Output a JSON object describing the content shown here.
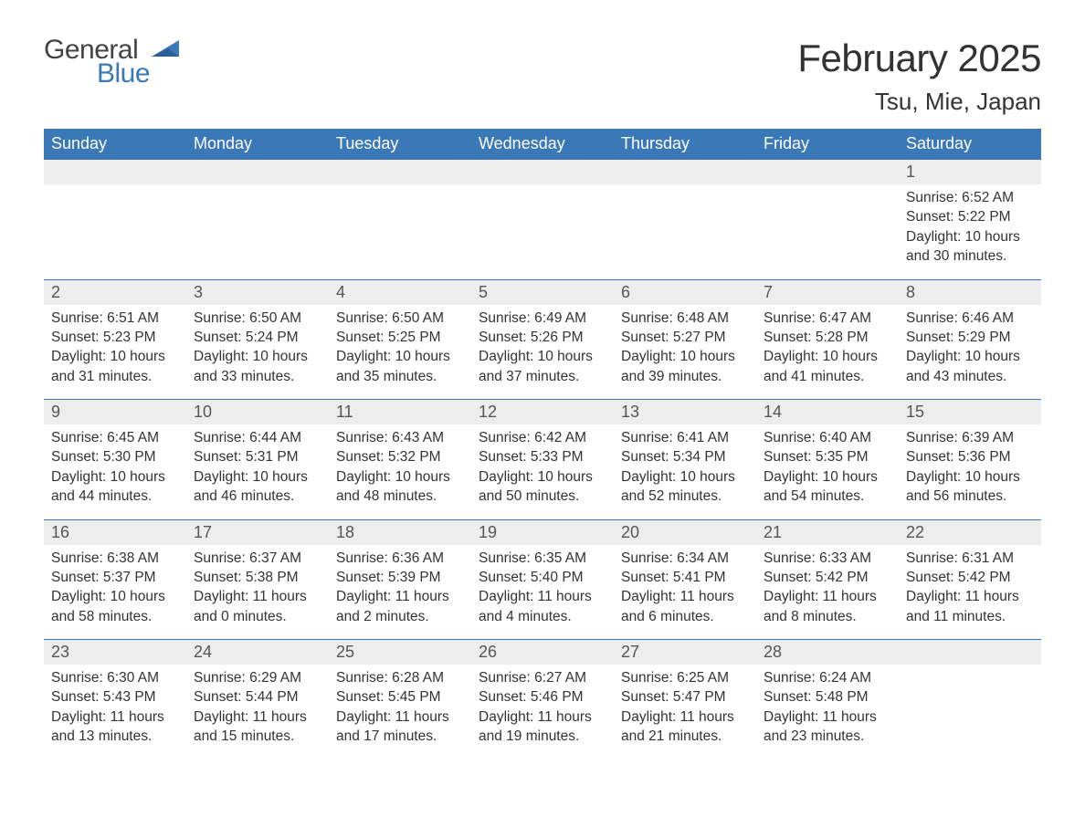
{
  "colors": {
    "header_bg": "#3a78b8",
    "header_text": "#ffffff",
    "daynum_bg": "#ededed",
    "row_border": "#3a78b8",
    "body_text": "#333333",
    "logo_gray": "#444444",
    "logo_blue": "#3a78b8",
    "page_bg": "#ffffff"
  },
  "typography": {
    "title_fontsize": 42,
    "location_fontsize": 26,
    "weekday_fontsize": 18,
    "daynum_fontsize": 18,
    "body_fontsize": 15.5
  },
  "logo": {
    "line1": "General",
    "line2": "Blue"
  },
  "title": "February 2025",
  "location": "Tsu, Mie, Japan",
  "weekdays": [
    "Sunday",
    "Monday",
    "Tuesday",
    "Wednesday",
    "Thursday",
    "Friday",
    "Saturday"
  ],
  "weeks": [
    [
      {
        "day": "",
        "sunrise": "",
        "sunset": "",
        "daylight": ""
      },
      {
        "day": "",
        "sunrise": "",
        "sunset": "",
        "daylight": ""
      },
      {
        "day": "",
        "sunrise": "",
        "sunset": "",
        "daylight": ""
      },
      {
        "day": "",
        "sunrise": "",
        "sunset": "",
        "daylight": ""
      },
      {
        "day": "",
        "sunrise": "",
        "sunset": "",
        "daylight": ""
      },
      {
        "day": "",
        "sunrise": "",
        "sunset": "",
        "daylight": ""
      },
      {
        "day": "1",
        "sunrise": "Sunrise: 6:52 AM",
        "sunset": "Sunset: 5:22 PM",
        "daylight": "Daylight: 10 hours and 30 minutes."
      }
    ],
    [
      {
        "day": "2",
        "sunrise": "Sunrise: 6:51 AM",
        "sunset": "Sunset: 5:23 PM",
        "daylight": "Daylight: 10 hours and 31 minutes."
      },
      {
        "day": "3",
        "sunrise": "Sunrise: 6:50 AM",
        "sunset": "Sunset: 5:24 PM",
        "daylight": "Daylight: 10 hours and 33 minutes."
      },
      {
        "day": "4",
        "sunrise": "Sunrise: 6:50 AM",
        "sunset": "Sunset: 5:25 PM",
        "daylight": "Daylight: 10 hours and 35 minutes."
      },
      {
        "day": "5",
        "sunrise": "Sunrise: 6:49 AM",
        "sunset": "Sunset: 5:26 PM",
        "daylight": "Daylight: 10 hours and 37 minutes."
      },
      {
        "day": "6",
        "sunrise": "Sunrise: 6:48 AM",
        "sunset": "Sunset: 5:27 PM",
        "daylight": "Daylight: 10 hours and 39 minutes."
      },
      {
        "day": "7",
        "sunrise": "Sunrise: 6:47 AM",
        "sunset": "Sunset: 5:28 PM",
        "daylight": "Daylight: 10 hours and 41 minutes."
      },
      {
        "day": "8",
        "sunrise": "Sunrise: 6:46 AM",
        "sunset": "Sunset: 5:29 PM",
        "daylight": "Daylight: 10 hours and 43 minutes."
      }
    ],
    [
      {
        "day": "9",
        "sunrise": "Sunrise: 6:45 AM",
        "sunset": "Sunset: 5:30 PM",
        "daylight": "Daylight: 10 hours and 44 minutes."
      },
      {
        "day": "10",
        "sunrise": "Sunrise: 6:44 AM",
        "sunset": "Sunset: 5:31 PM",
        "daylight": "Daylight: 10 hours and 46 minutes."
      },
      {
        "day": "11",
        "sunrise": "Sunrise: 6:43 AM",
        "sunset": "Sunset: 5:32 PM",
        "daylight": "Daylight: 10 hours and 48 minutes."
      },
      {
        "day": "12",
        "sunrise": "Sunrise: 6:42 AM",
        "sunset": "Sunset: 5:33 PM",
        "daylight": "Daylight: 10 hours and 50 minutes."
      },
      {
        "day": "13",
        "sunrise": "Sunrise: 6:41 AM",
        "sunset": "Sunset: 5:34 PM",
        "daylight": "Daylight: 10 hours and 52 minutes."
      },
      {
        "day": "14",
        "sunrise": "Sunrise: 6:40 AM",
        "sunset": "Sunset: 5:35 PM",
        "daylight": "Daylight: 10 hours and 54 minutes."
      },
      {
        "day": "15",
        "sunrise": "Sunrise: 6:39 AM",
        "sunset": "Sunset: 5:36 PM",
        "daylight": "Daylight: 10 hours and 56 minutes."
      }
    ],
    [
      {
        "day": "16",
        "sunrise": "Sunrise: 6:38 AM",
        "sunset": "Sunset: 5:37 PM",
        "daylight": "Daylight: 10 hours and 58 minutes."
      },
      {
        "day": "17",
        "sunrise": "Sunrise: 6:37 AM",
        "sunset": "Sunset: 5:38 PM",
        "daylight": "Daylight: 11 hours and 0 minutes."
      },
      {
        "day": "18",
        "sunrise": "Sunrise: 6:36 AM",
        "sunset": "Sunset: 5:39 PM",
        "daylight": "Daylight: 11 hours and 2 minutes."
      },
      {
        "day": "19",
        "sunrise": "Sunrise: 6:35 AM",
        "sunset": "Sunset: 5:40 PM",
        "daylight": "Daylight: 11 hours and 4 minutes."
      },
      {
        "day": "20",
        "sunrise": "Sunrise: 6:34 AM",
        "sunset": "Sunset: 5:41 PM",
        "daylight": "Daylight: 11 hours and 6 minutes."
      },
      {
        "day": "21",
        "sunrise": "Sunrise: 6:33 AM",
        "sunset": "Sunset: 5:42 PM",
        "daylight": "Daylight: 11 hours and 8 minutes."
      },
      {
        "day": "22",
        "sunrise": "Sunrise: 6:31 AM",
        "sunset": "Sunset: 5:42 PM",
        "daylight": "Daylight: 11 hours and 11 minutes."
      }
    ],
    [
      {
        "day": "23",
        "sunrise": "Sunrise: 6:30 AM",
        "sunset": "Sunset: 5:43 PM",
        "daylight": "Daylight: 11 hours and 13 minutes."
      },
      {
        "day": "24",
        "sunrise": "Sunrise: 6:29 AM",
        "sunset": "Sunset: 5:44 PM",
        "daylight": "Daylight: 11 hours and 15 minutes."
      },
      {
        "day": "25",
        "sunrise": "Sunrise: 6:28 AM",
        "sunset": "Sunset: 5:45 PM",
        "daylight": "Daylight: 11 hours and 17 minutes."
      },
      {
        "day": "26",
        "sunrise": "Sunrise: 6:27 AM",
        "sunset": "Sunset: 5:46 PM",
        "daylight": "Daylight: 11 hours and 19 minutes."
      },
      {
        "day": "27",
        "sunrise": "Sunrise: 6:25 AM",
        "sunset": "Sunset: 5:47 PM",
        "daylight": "Daylight: 11 hours and 21 minutes."
      },
      {
        "day": "28",
        "sunrise": "Sunrise: 6:24 AM",
        "sunset": "Sunset: 5:48 PM",
        "daylight": "Daylight: 11 hours and 23 minutes."
      },
      {
        "day": "",
        "sunrise": "",
        "sunset": "",
        "daylight": ""
      }
    ]
  ]
}
